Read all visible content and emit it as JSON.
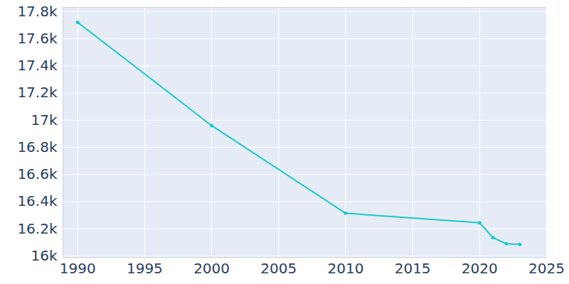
{
  "chart_data": {
    "type": "line",
    "x": [
      1990,
      2000,
      2010,
      2020,
      2021,
      2022,
      2023
    ],
    "values": [
      17720,
      16960,
      16315,
      16245,
      16135,
      16090,
      16085
    ],
    "color": "#1cc9c9",
    "marker": "circle",
    "xlim": [
      1988.9,
      2025
    ],
    "xticks": [
      1990,
      1995,
      2000,
      2005,
      2010,
      2015,
      2020,
      2025
    ],
    "ylim": [
      15990,
      17830
    ],
    "yticks": [
      {
        "value": 16000,
        "label": "16k"
      },
      {
        "value": 16200,
        "label": "16.2k"
      },
      {
        "value": 16400,
        "label": "16.4k"
      },
      {
        "value": 16600,
        "label": "16.6k"
      },
      {
        "value": 16800,
        "label": "16.8k"
      },
      {
        "value": 17000,
        "label": "17k"
      },
      {
        "value": 17200,
        "label": "17.2k"
      },
      {
        "value": 17400,
        "label": "17.4k"
      },
      {
        "value": 17600,
        "label": "17.6k"
      },
      {
        "value": 17800,
        "label": "17.8k"
      }
    ],
    "grid": true
  }
}
